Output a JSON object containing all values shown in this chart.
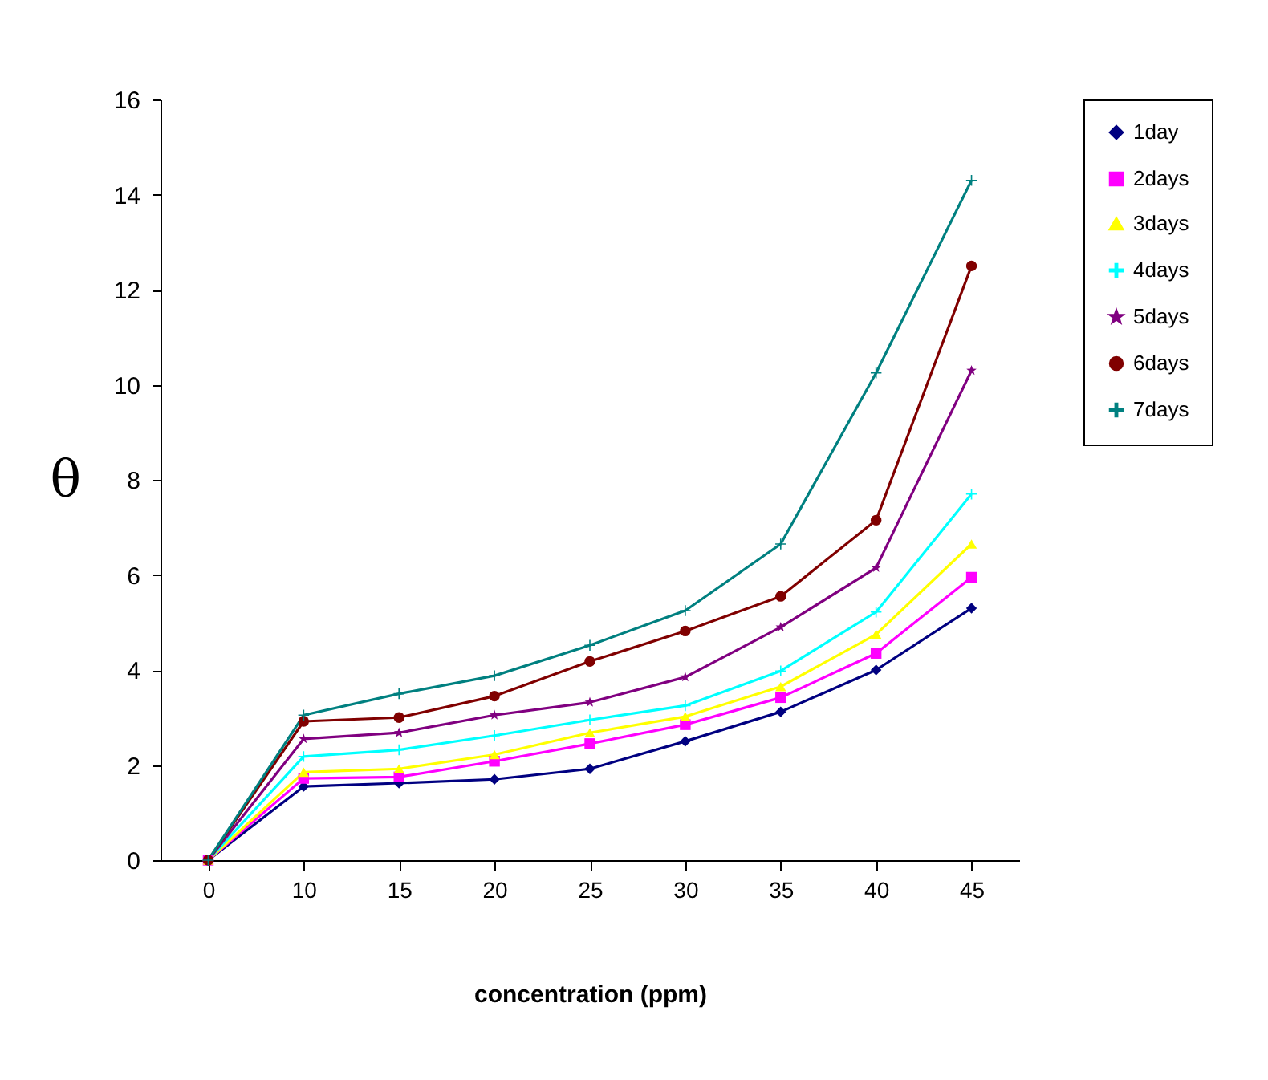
{
  "chart_data": {
    "type": "line",
    "xlabel": "concentration (ppm)",
    "ylabel": "θ",
    "categories": [
      "0",
      "10",
      "15",
      "20",
      "25",
      "30",
      "35",
      "40",
      "45"
    ],
    "ylim": [
      0,
      16
    ],
    "yticks": [
      0,
      2,
      4,
      6,
      8,
      10,
      12,
      14,
      16
    ],
    "grid": false,
    "legend": "right",
    "line_style": "solid",
    "series": [
      {
        "name": "1day",
        "color": "#000080",
        "marker": "diamond",
        "values": [
          0,
          1.55,
          1.62,
          1.7,
          1.92,
          2.5,
          3.12,
          4.0,
          5.3
        ]
      },
      {
        "name": "2days",
        "color": "#ff00ff",
        "marker": "square",
        "values": [
          0,
          1.72,
          1.75,
          2.08,
          2.45,
          2.85,
          3.42,
          4.35,
          5.95
        ]
      },
      {
        "name": "3days",
        "color": "#ffff00",
        "marker": "triangle",
        "values": [
          0,
          1.85,
          1.92,
          2.22,
          2.68,
          3.02,
          3.65,
          4.75,
          6.65
        ]
      },
      {
        "name": "4days",
        "color": "#00ffff",
        "marker": "cross",
        "values": [
          0,
          2.18,
          2.32,
          2.62,
          2.95,
          3.25,
          3.98,
          5.22,
          7.7
        ]
      },
      {
        "name": "5days",
        "color": "#800080",
        "marker": "star",
        "values": [
          0,
          2.55,
          2.68,
          3.05,
          3.32,
          3.85,
          4.9,
          6.15,
          10.3
        ]
      },
      {
        "name": "6days",
        "color": "#800000",
        "marker": "circle",
        "values": [
          0,
          2.92,
          3.0,
          3.45,
          4.18,
          4.82,
          5.55,
          7.15,
          12.5
        ]
      },
      {
        "name": "7days",
        "color": "#008080",
        "marker": "cross",
        "values": [
          0,
          3.05,
          3.5,
          3.88,
          4.52,
          5.25,
          6.65,
          10.25,
          14.3
        ]
      }
    ]
  }
}
